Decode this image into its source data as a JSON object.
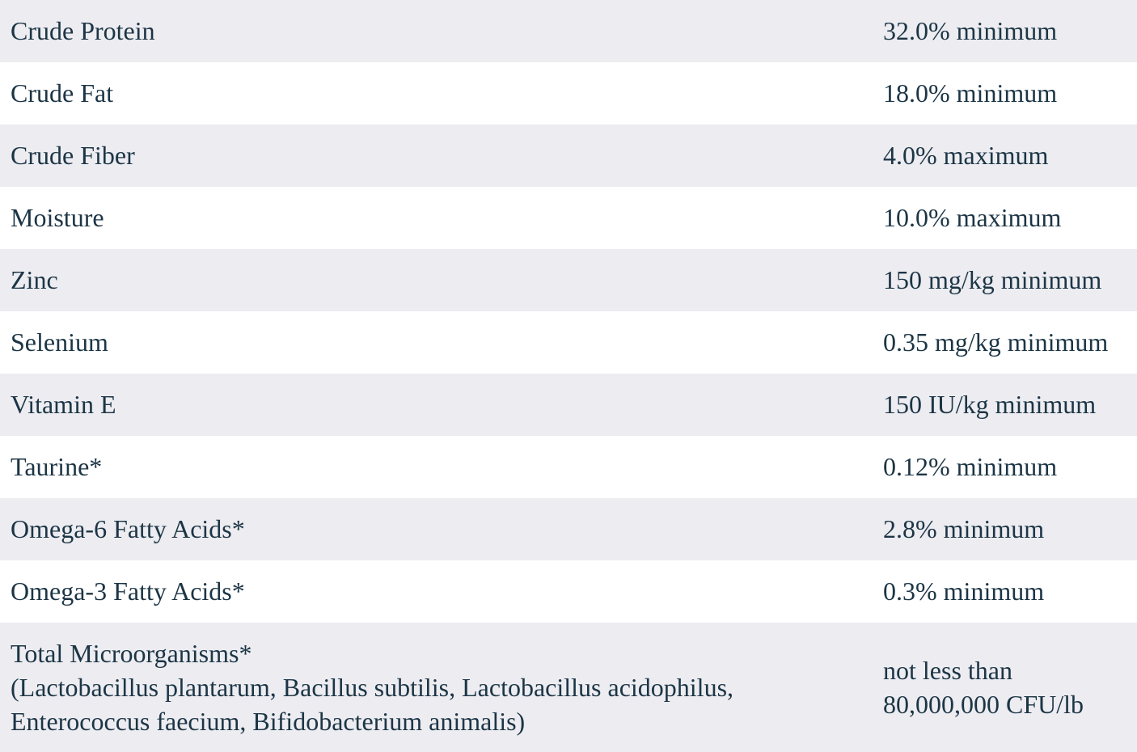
{
  "colors": {
    "stripe": "#ECECF1",
    "row_white": "#FFFFFF",
    "text": "#1C3545"
  },
  "table": {
    "rows": [
      {
        "label": "Crude Protein",
        "value": "32.0% minimum"
      },
      {
        "label": "Crude Fat",
        "value": "18.0% minimum"
      },
      {
        "label": "Crude Fiber",
        "value": "4.0% maximum"
      },
      {
        "label": "Moisture",
        "value": "10.0% maximum"
      },
      {
        "label": "Zinc",
        "value": "150 mg/kg minimum"
      },
      {
        "label": "Selenium",
        "value": "0.35 mg/kg minimum"
      },
      {
        "label": "Vitamin E",
        "value": "150 IU/kg minimum"
      },
      {
        "label": "Taurine*",
        "value": "0.12% minimum"
      },
      {
        "label": "Omega-6 Fatty Acids*",
        "value": "2.8% minimum"
      },
      {
        "label": "Omega-3 Fatty Acids*",
        "value": "0.3% minimum"
      },
      {
        "label": "Total Microorganisms*",
        "details": [
          "(Lactobacillus plantarum, Bacillus subtilis, Lactobacillus acidophilus,",
          "Enterococcus faecium, Bifidobacterium animalis)"
        ],
        "value_lines": [
          "not less than",
          "80,000,000 CFU/lb"
        ]
      }
    ]
  }
}
